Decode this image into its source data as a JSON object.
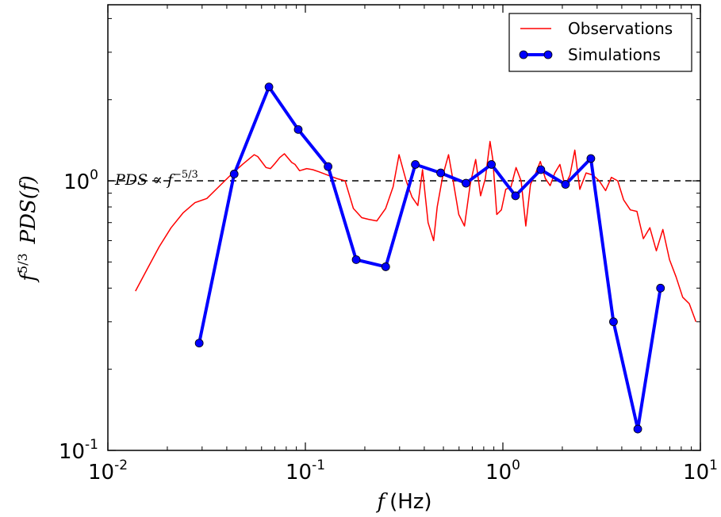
{
  "chart_data": {
    "type": "line",
    "title": "",
    "xlabel_var": "f",
    "xlabel_unit": "(Hz)",
    "ylabel": "f^{5/3} PDS(f)",
    "xscale": "log",
    "yscale": "log",
    "xlim": [
      0.01,
      10
    ],
    "ylim": [
      0.1,
      4.5
    ],
    "grid": false,
    "legend_position": "top-right",
    "x_ticks": [
      {
        "base": "10",
        "exp": "-2"
      },
      {
        "base": "10",
        "exp": "-1"
      },
      {
        "base": "10",
        "exp": "0"
      },
      {
        "base": "10",
        "exp": "1"
      }
    ],
    "y_ticks": [
      {
        "base": "10",
        "exp": "-1"
      },
      {
        "base": "10",
        "exp": "0"
      }
    ],
    "reference_line": {
      "y": 1.0,
      "style": "dashed",
      "color": "#000000",
      "label_main": "PDS ∝ f",
      "label_exp": "−5/3"
    },
    "series": [
      {
        "name": "Observations",
        "color": "#ff0000",
        "line_width": 1.5,
        "markers": false,
        "x": [
          0.0138,
          0.0158,
          0.0182,
          0.0209,
          0.024,
          0.0276,
          0.0317,
          0.0364,
          0.0418,
          0.048,
          0.0551,
          0.0574,
          0.0632,
          0.0665,
          0.0702,
          0.0742,
          0.0783,
          0.0853,
          0.0887,
          0.0935,
          0.1016,
          0.1091,
          0.1172,
          0.13,
          0.144,
          0.159,
          0.175,
          0.193,
          0.209,
          0.23,
          0.255,
          0.278,
          0.298,
          0.324,
          0.347,
          0.371,
          0.392,
          0.418,
          0.446,
          0.465,
          0.497,
          0.531,
          0.56,
          0.598,
          0.639,
          0.683,
          0.728,
          0.771,
          0.815,
          0.861,
          0.889,
          0.931,
          0.983,
          1.034,
          1.099,
          1.166,
          1.237,
          1.306,
          1.38,
          1.46,
          1.547,
          1.64,
          1.735,
          1.832,
          1.945,
          2.061,
          2.186,
          2.314,
          2.453,
          2.637,
          2.861,
          3.075,
          3.313,
          3.542,
          3.814,
          4.086,
          4.42,
          4.77,
          5.144,
          5.547,
          5.985,
          6.458,
          6.978,
          7.534,
          8.136,
          8.788,
          9.499
        ],
        "y": [
          0.39,
          0.47,
          0.57,
          0.67,
          0.76,
          0.83,
          0.86,
          0.95,
          1.05,
          1.15,
          1.25,
          1.23,
          1.12,
          1.11,
          1.16,
          1.22,
          1.26,
          1.17,
          1.15,
          1.09,
          1.11,
          1.1,
          1.08,
          1.05,
          1.02,
          1.0,
          0.79,
          0.73,
          0.72,
          0.71,
          0.79,
          0.95,
          1.25,
          1.0,
          0.87,
          0.81,
          1.1,
          0.7,
          0.6,
          0.8,
          1.05,
          1.25,
          1.0,
          0.75,
          0.68,
          0.97,
          1.2,
          0.88,
          1.02,
          1.4,
          1.2,
          0.75,
          0.78,
          0.93,
          0.95,
          1.12,
          1.0,
          0.68,
          0.97,
          1.06,
          1.18,
          1.02,
          0.96,
          1.07,
          1.15,
          0.96,
          1.05,
          1.3,
          0.93,
          1.07,
          1.05,
          1.0,
          0.92,
          1.03,
          1.0,
          0.85,
          0.78,
          0.77,
          0.61,
          0.67,
          0.55,
          0.66,
          0.51,
          0.44,
          0.37,
          0.35,
          0.3
        ]
      },
      {
        "name": "Simulations",
        "color": "#0000ff",
        "line_width": 4,
        "markers": true,
        "x": [
          0.029,
          0.0436,
          0.0654,
          0.092,
          0.1303,
          0.1808,
          0.2551,
          0.3602,
          0.4844,
          0.6504,
          0.8752,
          1.1589,
          1.5568,
          2.0753,
          2.7893,
          3.6305,
          4.8192,
          6.2823
        ],
        "y": [
          0.25,
          1.06,
          2.23,
          1.55,
          1.13,
          0.51,
          0.48,
          1.15,
          1.07,
          0.98,
          1.15,
          0.88,
          1.1,
          0.97,
          1.21,
          0.3,
          0.12,
          0.4
        ]
      }
    ]
  }
}
